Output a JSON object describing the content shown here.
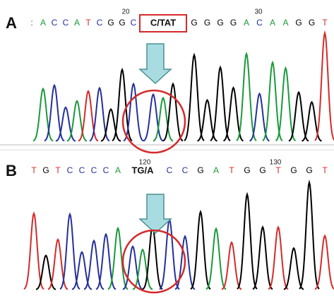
{
  "panels": [
    {
      "label": "A",
      "sequence": [
        ":",
        "A",
        "C",
        "C",
        "A",
        "T",
        "C",
        "G",
        "G",
        "C"
      ],
      "highlight": "C/TAT",
      "sequence_after": [
        "G",
        "G",
        "G",
        "G",
        "A",
        "C",
        "A",
        "A",
        "G",
        "G",
        "T"
      ],
      "positions": [
        "20",
        "30"
      ]
    },
    {
      "label": "B",
      "sequence": [
        "T",
        "G",
        "T",
        "C",
        "C",
        "C",
        "C",
        "A"
      ],
      "highlight": "TG/A",
      "sequence_after": [
        "C",
        "C",
        "G",
        "A",
        "T",
        "G",
        "G",
        "T",
        "G",
        "G",
        "T"
      ],
      "positions": [
        "120",
        "130"
      ]
    }
  ],
  "base_colors": {
    "A": "#1a9a3a",
    "C": "#24309c",
    "G": "#000000",
    "T": "#d42a2a",
    ":": "#24309c"
  }
}
